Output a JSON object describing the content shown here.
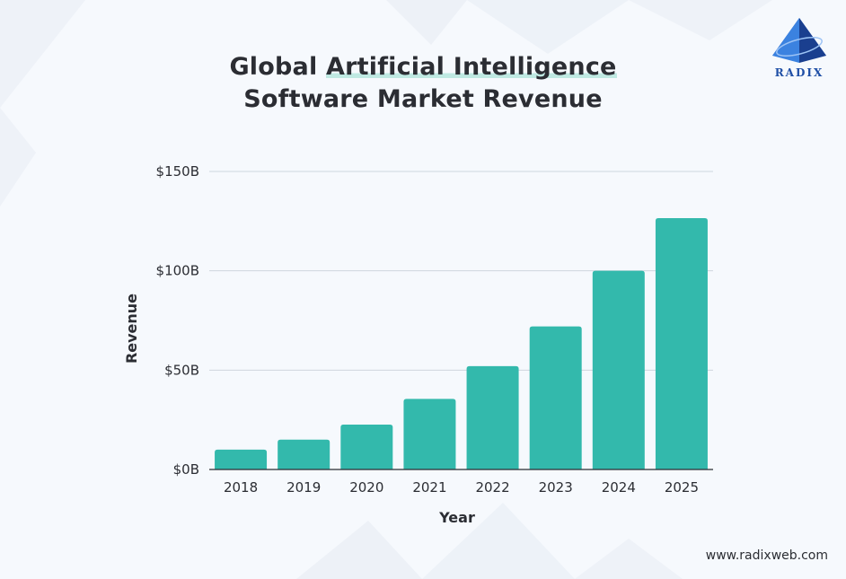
{
  "title": {
    "prefix": "Global ",
    "highlight": "Artificial Intelligence",
    "line2": "Software Market Revenue"
  },
  "brand": {
    "logo_text": "RADIX",
    "website": "www.radixweb.com"
  },
  "colors": {
    "bar": "#33b9ac",
    "grid": "#cfd6de",
    "axis": "#2b2d33",
    "brand_blue": "#1f4fa6"
  },
  "chart_data": {
    "type": "bar",
    "title": "Global Artificial Intelligence Software Market Revenue",
    "xlabel": "Year",
    "ylabel": "Revenue",
    "categories": [
      "2018",
      "2019",
      "2020",
      "2021",
      "2022",
      "2023",
      "2024",
      "2025"
    ],
    "values": [
      10,
      15,
      22.6,
      35.5,
      52,
      72,
      100,
      126.5
    ],
    "ylim": [
      0,
      150
    ],
    "yticks": [
      0,
      50,
      100,
      150
    ],
    "ytick_labels": [
      "$0B",
      "$50B",
      "$100B",
      "$150B"
    ],
    "unit": "billion USD",
    "grid": true
  }
}
